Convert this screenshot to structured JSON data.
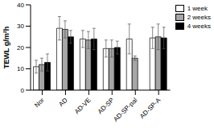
{
  "chart_data": {
    "type": "bar",
    "y_label": "TEWL g/m²h",
    "categories": [
      "Nor",
      "AD",
      "AD-VE",
      "AD-SP",
      "AD-SP-pal",
      "AD-SP-A"
    ],
    "series": [
      {
        "name": "1 week",
        "color": "#ffffff",
        "values": [
          11,
          29,
          24,
          19.5,
          24,
          24.5
        ],
        "errors": [
          3,
          5.5,
          4,
          4,
          7,
          5
        ]
      },
      {
        "name": "2 weeks",
        "color": "#a6a6a6",
        "values": [
          12,
          28.5,
          23.5,
          19.5,
          15,
          25
        ],
        "errors": [
          3,
          4,
          4,
          4,
          1,
          6
        ]
      },
      {
        "name": "4 weeks",
        "color": "#000000",
        "values": [
          13,
          25,
          24,
          20,
          0,
          24.5
        ],
        "errors": [
          4,
          3,
          5,
          3,
          0,
          5
        ]
      }
    ],
    "ylim": [
      0,
      40
    ],
    "yticks": [
      0,
      10,
      20,
      30,
      40
    ],
    "grid": false,
    "legend": "top-right"
  }
}
